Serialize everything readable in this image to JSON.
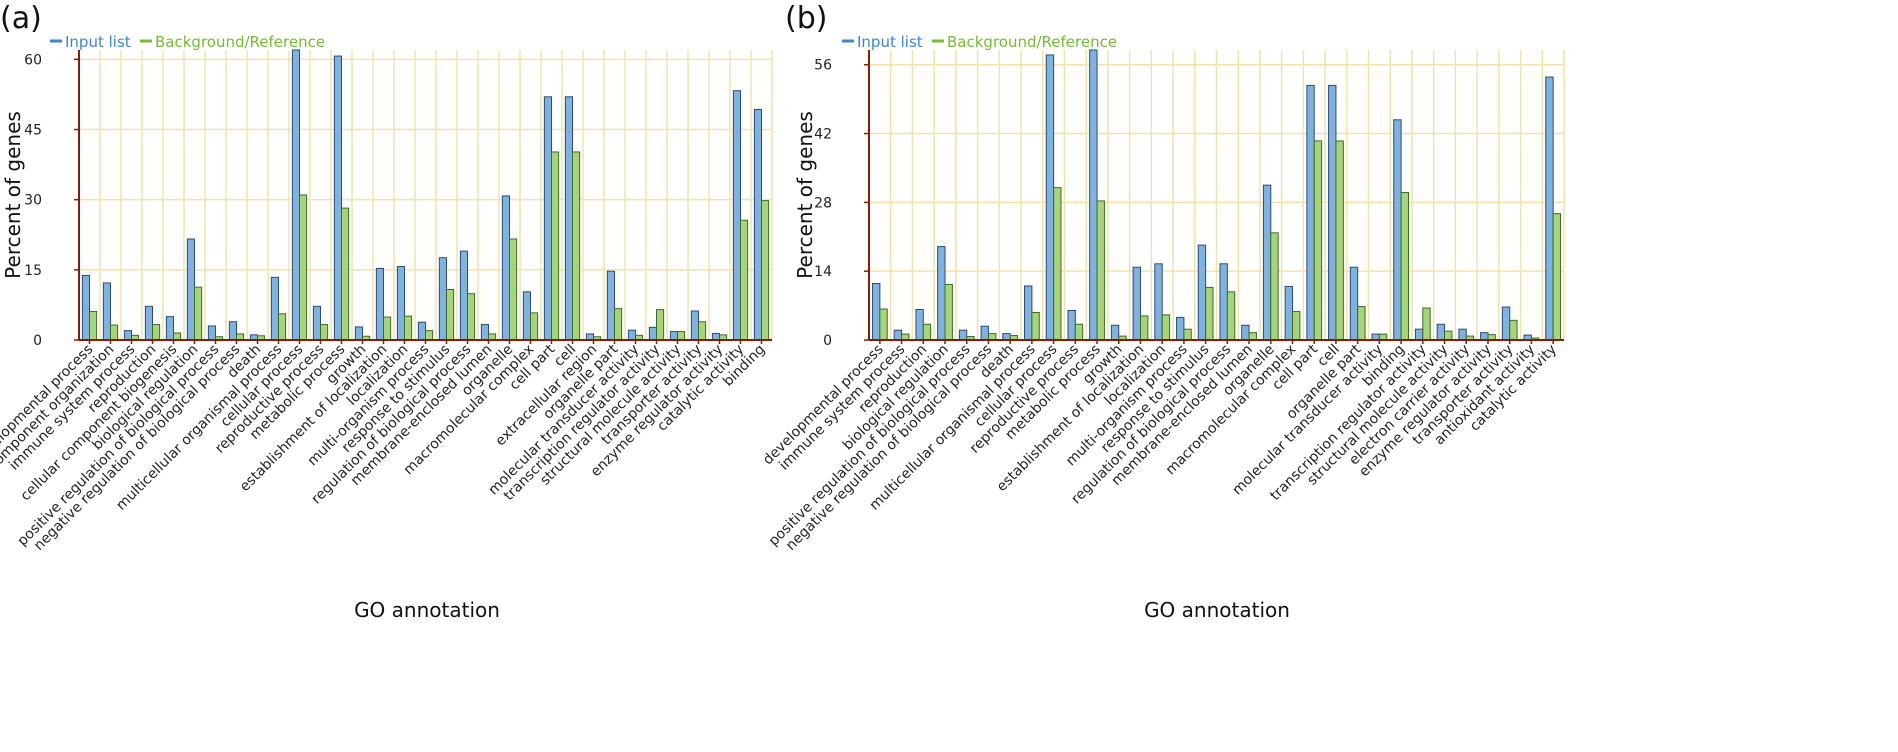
{
  "colors": {
    "input": "#7fb2e0",
    "input_stroke": "#2a4d73",
    "reference": "#a6d478",
    "reference_stroke": "#3f6b26",
    "grid": "#f3e3a8",
    "axis": "#8b1a00",
    "input_legend": "#3e86cf",
    "reference_legend": "#72bd32"
  },
  "chart_data": [
    {
      "type": "bar",
      "panel_label": "(a)",
      "legend": [
        "Input list",
        "Background/Reference"
      ],
      "xlabel": "GO annotation",
      "ylabel": "Percent of genes",
      "ylim": [
        0,
        62
      ],
      "yticks": [
        "0",
        "15",
        "30",
        "45",
        "60"
      ],
      "ytick_values": [
        0,
        15,
        30,
        45,
        60
      ],
      "categories": [
        "developmental process",
        "cellular component organization",
        "immune system process",
        "reproduction",
        "cellular component biogenesis",
        "biological regulation",
        "positive regulation of biological process",
        "negative regulation of biological process",
        "death",
        "multicellular organismal process",
        "cellular process",
        "reproductive process",
        "metabolic process",
        "growth",
        "establishment of localization",
        "localization",
        "multi-organism process",
        "response to stimulus",
        "regulation of biological process",
        "membrane-enclosed lumen",
        "organelle",
        "macromolecular complex",
        "cell part",
        "cell",
        "extracellular region",
        "organelle part",
        "molecular transducer activity",
        "transcription regulator activity",
        "structural molecule activity",
        "transporter activity",
        "enzyme regulator activity",
        "catalytic activity",
        "binding"
      ],
      "series": [
        {
          "name": "Input list",
          "values": [
            13.8,
            12.2,
            2.0,
            7.2,
            5.0,
            21.6,
            3.0,
            3.9,
            1.1,
            13.4,
            62.0,
            7.2,
            60.7,
            2.8,
            15.3,
            15.7,
            3.8,
            17.6,
            19.0,
            3.3,
            30.8,
            10.3,
            52.0,
            52.0,
            1.3,
            14.7,
            2.1,
            2.7,
            1.8,
            6.2,
            1.4,
            53.3,
            49.3
          ]
        },
        {
          "name": "Background/Reference",
          "values": [
            6.1,
            3.2,
            1.0,
            3.3,
            1.5,
            11.3,
            0.7,
            1.3,
            0.9,
            5.6,
            31.0,
            3.3,
            28.2,
            0.8,
            4.9,
            5.1,
            2.0,
            10.8,
            9.9,
            1.3,
            21.6,
            5.8,
            40.2,
            40.2,
            0.7,
            6.7,
            1.0,
            6.5,
            1.8,
            3.9,
            1.1,
            25.6,
            29.8
          ]
        }
      ]
    },
    {
      "type": "bar",
      "panel_label": "(b)",
      "legend": [
        "Input list",
        "Background/Reference"
      ],
      "xlabel": "GO annotation",
      "ylabel": "Percent of genes",
      "ylim": [
        0,
        59
      ],
      "yticks": [
        "0",
        "14",
        "28",
        "42",
        "56"
      ],
      "ytick_values": [
        0,
        14,
        28,
        42,
        56
      ],
      "categories": [
        "developmental process",
        "immune system process",
        "reproduction",
        "biological regulation",
        "positive regulation of biological process",
        "negative regulation of biological process",
        "death",
        "multicellular organismal process",
        "cellular process",
        "reproductive process",
        "metabolic process",
        "growth",
        "establishment of localization",
        "localization",
        "multi-organism process",
        "response to stimulus",
        "regulation of biological process",
        "membrane-enclosed lumen",
        "organelle",
        "macromolecular complex",
        "cell part",
        "cell",
        "organelle part",
        "molecular transducer activity",
        "binding",
        "transcription regulator activity",
        "structural molecule activity",
        "electron carrier activity",
        "enzyme regulator activity",
        "transporter activity",
        "antioxidant activity",
        "catalytic activity"
      ],
      "series": [
        {
          "name": "Input list",
          "values": [
            11.5,
            2.0,
            6.2,
            19.0,
            2.0,
            2.8,
            1.3,
            11.0,
            58.0,
            6.0,
            59.0,
            3.0,
            14.8,
            15.5,
            4.6,
            19.3,
            15.5,
            3.0,
            31.5,
            10.9,
            51.8,
            51.8,
            14.8,
            1.2,
            44.8,
            2.2,
            3.2,
            2.2,
            1.5,
            6.7,
            1.0,
            53.5
          ]
        },
        {
          "name": "Background/Reference",
          "values": [
            6.3,
            1.2,
            3.2,
            11.3,
            0.7,
            1.3,
            0.9,
            5.6,
            31.0,
            3.2,
            28.3,
            0.8,
            4.9,
            5.1,
            2.2,
            10.7,
            9.8,
            1.5,
            21.8,
            5.8,
            40.5,
            40.5,
            6.8,
            1.2,
            30.0,
            6.5,
            1.8,
            0.8,
            1.1,
            4.0,
            0.4,
            25.7
          ]
        }
      ]
    }
  ]
}
